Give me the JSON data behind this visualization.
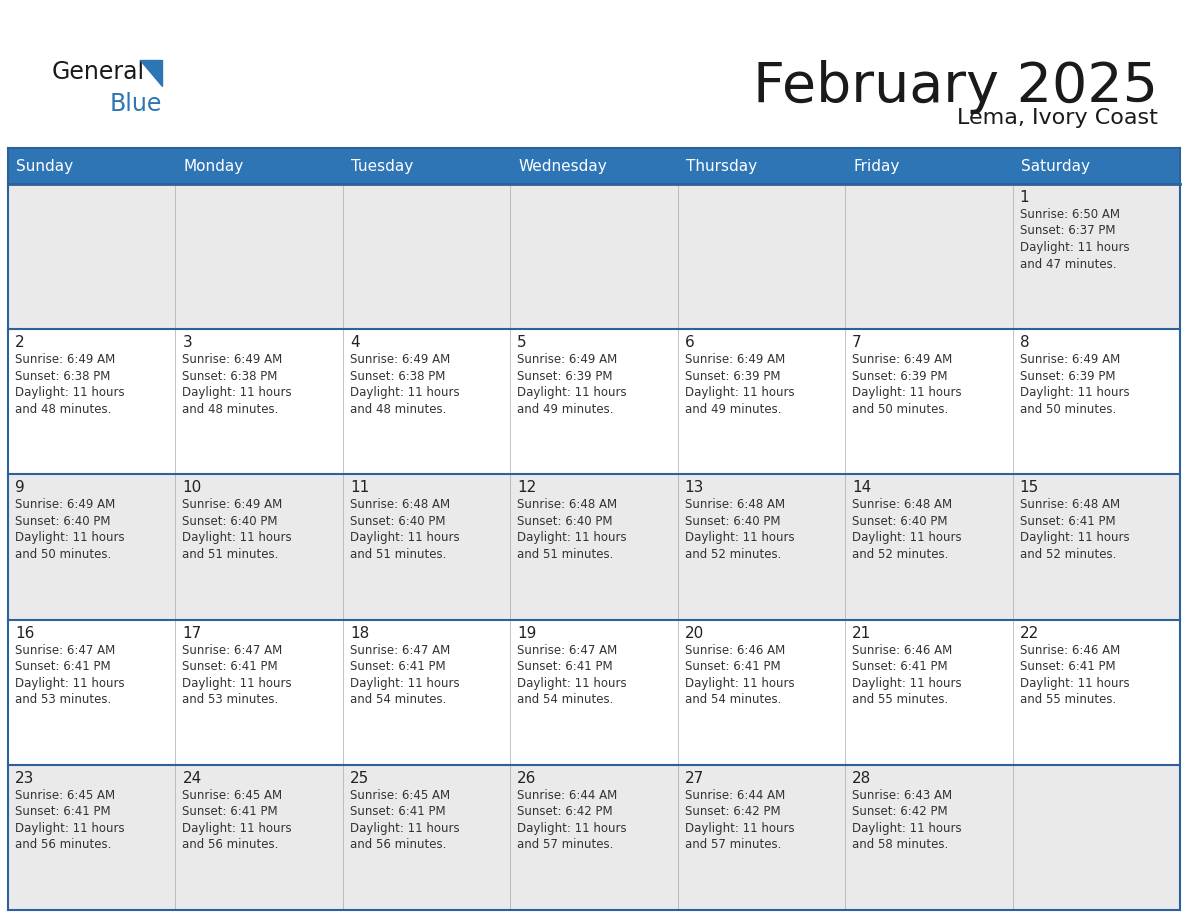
{
  "title": "February 2025",
  "subtitle": "Lema, Ivory Coast",
  "header_bg": "#2E75B6",
  "header_text_color": "#FFFFFF",
  "header_days": [
    "Sunday",
    "Monday",
    "Tuesday",
    "Wednesday",
    "Thursday",
    "Friday",
    "Saturday"
  ],
  "cell_bg_odd": "#EAEAEA",
  "cell_bg_even": "#FFFFFF",
  "border_color": "#2E6099",
  "day_number_color": "#222222",
  "info_text_color": "#333333",
  "logo_general_color": "#1A1A1A",
  "logo_blue_color": "#2E75B6",
  "title_color": "#1A1A1A",
  "subtitle_color": "#1A1A1A",
  "weeks": [
    [
      {
        "day": null,
        "info": null
      },
      {
        "day": null,
        "info": null
      },
      {
        "day": null,
        "info": null
      },
      {
        "day": null,
        "info": null
      },
      {
        "day": null,
        "info": null
      },
      {
        "day": null,
        "info": null
      },
      {
        "day": 1,
        "info": "Sunrise: 6:50 AM\nSunset: 6:37 PM\nDaylight: 11 hours\nand 47 minutes."
      }
    ],
    [
      {
        "day": 2,
        "info": "Sunrise: 6:49 AM\nSunset: 6:38 PM\nDaylight: 11 hours\nand 48 minutes."
      },
      {
        "day": 3,
        "info": "Sunrise: 6:49 AM\nSunset: 6:38 PM\nDaylight: 11 hours\nand 48 minutes."
      },
      {
        "day": 4,
        "info": "Sunrise: 6:49 AM\nSunset: 6:38 PM\nDaylight: 11 hours\nand 48 minutes."
      },
      {
        "day": 5,
        "info": "Sunrise: 6:49 AM\nSunset: 6:39 PM\nDaylight: 11 hours\nand 49 minutes."
      },
      {
        "day": 6,
        "info": "Sunrise: 6:49 AM\nSunset: 6:39 PM\nDaylight: 11 hours\nand 49 minutes."
      },
      {
        "day": 7,
        "info": "Sunrise: 6:49 AM\nSunset: 6:39 PM\nDaylight: 11 hours\nand 50 minutes."
      },
      {
        "day": 8,
        "info": "Sunrise: 6:49 AM\nSunset: 6:39 PM\nDaylight: 11 hours\nand 50 minutes."
      }
    ],
    [
      {
        "day": 9,
        "info": "Sunrise: 6:49 AM\nSunset: 6:40 PM\nDaylight: 11 hours\nand 50 minutes."
      },
      {
        "day": 10,
        "info": "Sunrise: 6:49 AM\nSunset: 6:40 PM\nDaylight: 11 hours\nand 51 minutes."
      },
      {
        "day": 11,
        "info": "Sunrise: 6:48 AM\nSunset: 6:40 PM\nDaylight: 11 hours\nand 51 minutes."
      },
      {
        "day": 12,
        "info": "Sunrise: 6:48 AM\nSunset: 6:40 PM\nDaylight: 11 hours\nand 51 minutes."
      },
      {
        "day": 13,
        "info": "Sunrise: 6:48 AM\nSunset: 6:40 PM\nDaylight: 11 hours\nand 52 minutes."
      },
      {
        "day": 14,
        "info": "Sunrise: 6:48 AM\nSunset: 6:40 PM\nDaylight: 11 hours\nand 52 minutes."
      },
      {
        "day": 15,
        "info": "Sunrise: 6:48 AM\nSunset: 6:41 PM\nDaylight: 11 hours\nand 52 minutes."
      }
    ],
    [
      {
        "day": 16,
        "info": "Sunrise: 6:47 AM\nSunset: 6:41 PM\nDaylight: 11 hours\nand 53 minutes."
      },
      {
        "day": 17,
        "info": "Sunrise: 6:47 AM\nSunset: 6:41 PM\nDaylight: 11 hours\nand 53 minutes."
      },
      {
        "day": 18,
        "info": "Sunrise: 6:47 AM\nSunset: 6:41 PM\nDaylight: 11 hours\nand 54 minutes."
      },
      {
        "day": 19,
        "info": "Sunrise: 6:47 AM\nSunset: 6:41 PM\nDaylight: 11 hours\nand 54 minutes."
      },
      {
        "day": 20,
        "info": "Sunrise: 6:46 AM\nSunset: 6:41 PM\nDaylight: 11 hours\nand 54 minutes."
      },
      {
        "day": 21,
        "info": "Sunrise: 6:46 AM\nSunset: 6:41 PM\nDaylight: 11 hours\nand 55 minutes."
      },
      {
        "day": 22,
        "info": "Sunrise: 6:46 AM\nSunset: 6:41 PM\nDaylight: 11 hours\nand 55 minutes."
      }
    ],
    [
      {
        "day": 23,
        "info": "Sunrise: 6:45 AM\nSunset: 6:41 PM\nDaylight: 11 hours\nand 56 minutes."
      },
      {
        "day": 24,
        "info": "Sunrise: 6:45 AM\nSunset: 6:41 PM\nDaylight: 11 hours\nand 56 minutes."
      },
      {
        "day": 25,
        "info": "Sunrise: 6:45 AM\nSunset: 6:41 PM\nDaylight: 11 hours\nand 56 minutes."
      },
      {
        "day": 26,
        "info": "Sunrise: 6:44 AM\nSunset: 6:42 PM\nDaylight: 11 hours\nand 57 minutes."
      },
      {
        "day": 27,
        "info": "Sunrise: 6:44 AM\nSunset: 6:42 PM\nDaylight: 11 hours\nand 57 minutes."
      },
      {
        "day": 28,
        "info": "Sunrise: 6:43 AM\nSunset: 6:42 PM\nDaylight: 11 hours\nand 58 minutes."
      },
      {
        "day": null,
        "info": null
      }
    ]
  ]
}
